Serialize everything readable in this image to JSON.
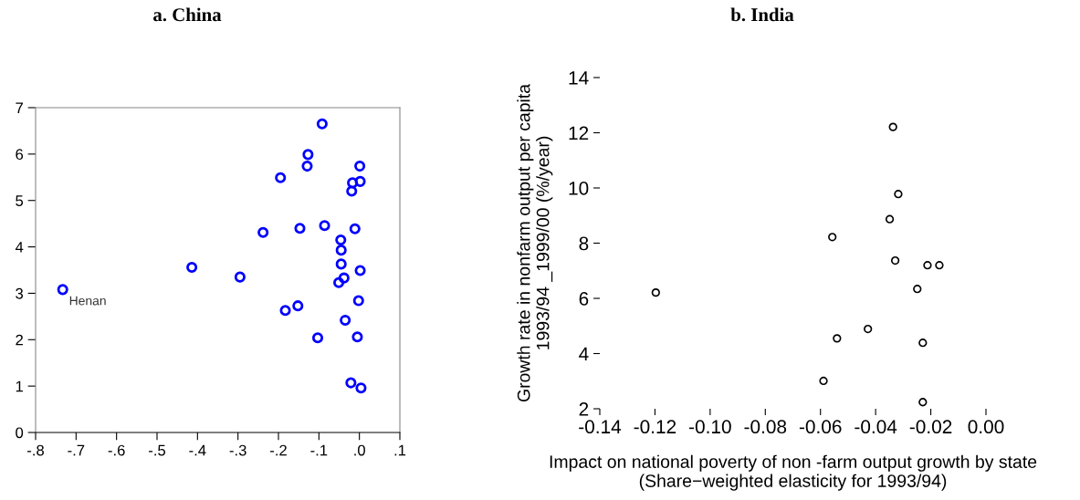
{
  "chart_data": [
    {
      "type": "scatter",
      "title": "a. China",
      "marker": "circle",
      "grid": false,
      "series": [
        {
          "color": "#0000ff",
          "x": [
            -0.733,
            -0.414,
            -0.295,
            -0.238,
            -0.195,
            -0.183,
            -0.152,
            -0.147,
            -0.129,
            -0.127,
            -0.103,
            -0.092,
            -0.086,
            -0.051,
            -0.046,
            -0.045,
            -0.045,
            -0.038,
            -0.035,
            -0.021,
            -0.019,
            -0.017,
            -0.011,
            -0.005,
            -0.002,
            0.001,
            0.002,
            0.002,
            0.004
          ],
          "values": [
            3.08,
            3.56,
            3.35,
            4.31,
            5.49,
            2.63,
            2.73,
            4.4,
            5.74,
            5.99,
            2.04,
            6.65,
            4.46,
            3.23,
            4.15,
            3.93,
            3.63,
            3.33,
            2.42,
            1.07,
            5.2,
            5.38,
            4.39,
            2.06,
            2.84,
            5.74,
            5.41,
            3.49,
            0.96
          ]
        }
      ],
      "annotations": [
        {
          "text": "Henan",
          "x": -0.733,
          "y": 3.08
        }
      ],
      "xlim": [
        -0.8,
        0.1
      ],
      "ylim": [
        0,
        7
      ],
      "xticks": [
        {
          "value": -0.8,
          "label": "-.8"
        },
        {
          "value": -0.7,
          "label": "-.7"
        },
        {
          "value": -0.6,
          "label": "-.6"
        },
        {
          "value": -0.5,
          "label": "-.5"
        },
        {
          "value": -0.4,
          "label": "-.4"
        },
        {
          "value": -0.3,
          "label": "-.3"
        },
        {
          "value": -0.2,
          "label": "-.2"
        },
        {
          "value": -0.1,
          "label": "-.1"
        },
        {
          "value": 0,
          "label": ".0"
        },
        {
          "value": 0.1,
          "label": ".1"
        }
      ],
      "yticks": [
        0,
        1,
        2,
        3,
        4,
        5,
        6,
        7
      ]
    },
    {
      "type": "scatter",
      "title": "b. India",
      "marker": "circle",
      "grid": false,
      "xlabel": "Impact on national poverty of non -farm output growth by state\n(Share−weighted elasticity for 1993/94)",
      "ylabel": "Growth rate in nonfarm output per capita\n1993/94 _1999/00 (%/year)",
      "series": [
        {
          "color": "#000000",
          "x": [
            -0.0337,
            -0.0318,
            -0.0349,
            -0.0557,
            -0.0329,
            -0.1197,
            -0.0428,
            -0.054,
            -0.0589,
            -0.0212,
            -0.0169,
            -0.0249,
            -0.0229,
            -0.0229
          ],
          "values": [
            12.21,
            9.78,
            8.87,
            8.22,
            7.37,
            6.21,
            4.89,
            4.55,
            3.01,
            7.2,
            7.2,
            6.34,
            4.39,
            2.24
          ]
        }
      ],
      "xlim": [
        -0.14,
        0.0
      ],
      "ylim": [
        2,
        14
      ],
      "xticks": [
        {
          "value": -0.14,
          "label": "-0.14"
        },
        {
          "value": -0.12,
          "label": "-0.12"
        },
        {
          "value": -0.1,
          "label": "-0.10"
        },
        {
          "value": -0.08,
          "label": "-0.08"
        },
        {
          "value": -0.06,
          "label": "-0.06"
        },
        {
          "value": -0.04,
          "label": "-0.04"
        },
        {
          "value": -0.02,
          "label": "-0.02"
        },
        {
          "value": 0.0,
          "label": "0.00"
        }
      ],
      "yticks": [
        2,
        4,
        6,
        8,
        10,
        12,
        14
      ]
    }
  ]
}
